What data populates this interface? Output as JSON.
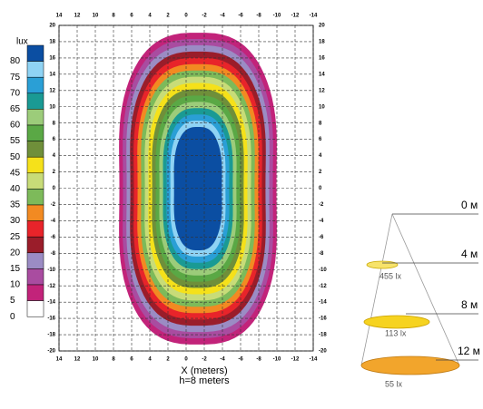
{
  "legend": {
    "title": "lux",
    "levels": [
      80,
      75,
      70,
      65,
      60,
      55,
      50,
      45,
      40,
      35,
      30,
      25,
      20,
      15,
      10,
      5,
      0
    ],
    "colors": [
      "#0b4ea2",
      "#8fd3f4",
      "#2a9fd6",
      "#1a9a94",
      "#9ccc7a",
      "#5aa845",
      "#6f8f3a",
      "#f5e11a",
      "#c8dc78",
      "#7dba5a",
      "#f28a22",
      "#e8242a",
      "#9a1d2a",
      "#9b8cc4",
      "#a94ca0",
      "#c2237a",
      "#ffffff"
    ]
  },
  "plot": {
    "xticks": [
      14,
      12,
      10,
      8,
      6,
      4,
      2,
      0,
      -2,
      -4,
      -6,
      -8,
      -10,
      -12,
      -14
    ],
    "yticks": [
      20,
      18,
      16,
      14,
      12,
      10,
      8,
      6,
      4,
      2,
      0,
      -2,
      -4,
      -6,
      -8,
      -10,
      -12,
      -14,
      -16,
      -18,
      -20
    ],
    "xlabel": "X (meters)",
    "note": "h=8 meters"
  },
  "cone": {
    "distances": [
      "0 м",
      "4 м",
      "8 м",
      "12 м"
    ],
    "lux": [
      "455 lx",
      "113 lx",
      "55 lx"
    ]
  }
}
